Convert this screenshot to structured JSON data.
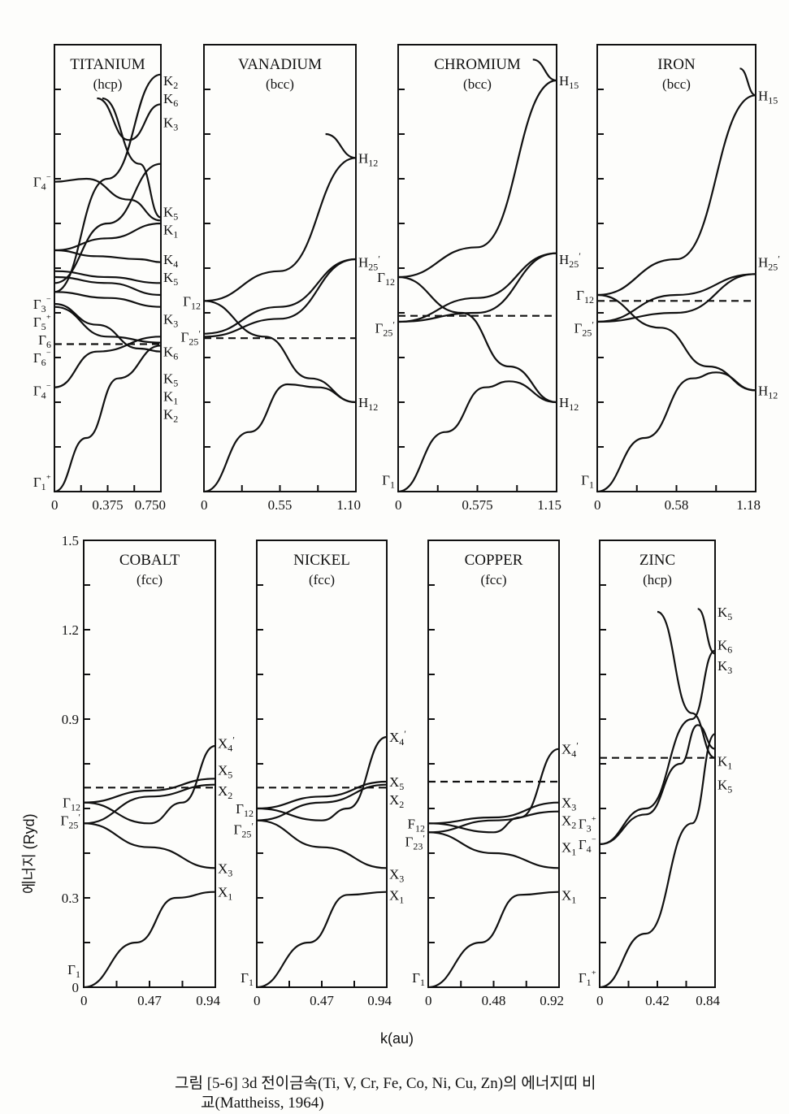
{
  "figure": {
    "x_axis_label": "k(au)",
    "y_axis_label": "에너지 (Ryd)",
    "caption_line1": "그림 [5-6]  3d 전이금속(Ti, V, Cr, Fe, Co, Ni, Cu, Zn)의 에너지띠 비",
    "caption_line2": "교(Mattheiss, 1964)",
    "y_ticks": [
      "1.5",
      "1.2",
      "0.9",
      "0.3",
      "0"
    ]
  },
  "chart_data": [
    {
      "type": "line",
      "title": "TITANIUM",
      "subtitle": "(hcp)",
      "x_ticks": [
        "0",
        "0.375",
        "0.750"
      ],
      "xlim": [
        0,
        0.75
      ],
      "ylim": [
        0,
        1.5
      ],
      "left_labels": [
        "Γ4⁻",
        "Γ3⁻",
        "Γ6",
        "Γ5⁺",
        "Γ6⁻",
        "Γ4⁻",
        "Γ1⁺"
      ],
      "right_labels": [
        "K2",
        "K6",
        "K3",
        "K5",
        "K1",
        "K4",
        "K5",
        "K3",
        "K6",
        "K5",
        "K1",
        "K2"
      ],
      "fermi_level": 0.495
    },
    {
      "type": "line",
      "title": "VANADIUM",
      "subtitle": "(bcc)",
      "x_ticks": [
        "0",
        "0.55",
        "1.10"
      ],
      "xlim": [
        0,
        1.1
      ],
      "ylim": [
        0,
        1.5
      ],
      "left_labels": [
        "Γ12",
        "Γ25′"
      ],
      "right_labels": [
        "H12",
        "H25′",
        "H12"
      ],
      "fermi_level": 0.515
    },
    {
      "type": "line",
      "title": "CHROMIUM",
      "subtitle": "(bcc)",
      "x_ticks": [
        "0",
        "0.575",
        "1.15"
      ],
      "xlim": [
        0,
        1.15
      ],
      "ylim": [
        0,
        1.5
      ],
      "left_labels": [
        "Γ12",
        "Γ25′",
        "Γ1"
      ],
      "right_labels": [
        "H15",
        "H25′",
        "H12"
      ],
      "fermi_level": 0.59
    },
    {
      "type": "line",
      "title": "IRON",
      "subtitle": "(bcc)",
      "x_ticks": [
        "0",
        "0.58",
        "1.18"
      ],
      "xlim": [
        0,
        1.18
      ],
      "ylim": [
        0,
        1.5
      ],
      "left_labels": [
        "Γ12",
        "Γ25′",
        "Γ1"
      ],
      "right_labels": [
        "H15",
        "H25′",
        "H12"
      ],
      "fermi_level": 0.64
    },
    {
      "type": "line",
      "title": "COBALT",
      "subtitle": "(fcc)",
      "x_ticks": [
        "0",
        "0.47",
        "0.94"
      ],
      "xlim": [
        0,
        0.94
      ],
      "ylim": [
        0,
        1.5
      ],
      "left_labels": [
        "Γ12",
        "Γ25′",
        "Γ1"
      ],
      "right_labels": [
        "X4′",
        "X5",
        "X2",
        "X3",
        "X1"
      ],
      "fermi_level": 0.67
    },
    {
      "type": "line",
      "title": "NICKEL",
      "subtitle": "(fcc)",
      "x_ticks": [
        "0",
        "0.47",
        "0.94"
      ],
      "xlim": [
        0,
        0.94
      ],
      "ylim": [
        0,
        1.5
      ],
      "left_labels": [
        "Γ12",
        "Γ25′",
        "Γ1"
      ],
      "right_labels": [
        "X4′",
        "X5",
        "X2",
        "X3",
        "X1"
      ],
      "fermi_level": 0.67
    },
    {
      "type": "line",
      "title": "COPPER",
      "subtitle": "(fcc)",
      "x_ticks": [
        "0",
        "0.48",
        "0.92"
      ],
      "xlim": [
        0,
        0.92
      ],
      "ylim": [
        0,
        1.5
      ],
      "left_labels": [
        "F12",
        "Γ23′",
        "Γ1"
      ],
      "right_labels": [
        "X4′",
        "X3",
        "X2",
        "X1",
        "X1"
      ],
      "fermi_level": 0.69
    },
    {
      "type": "line",
      "title": "ZINC",
      "subtitle": "(hcp)",
      "x_ticks": [
        "0",
        "0.42",
        "0.84"
      ],
      "xlim": [
        0,
        0.84
      ],
      "ylim": [
        0,
        1.5
      ],
      "left_labels": [
        "Γ3⁺",
        "Γ4⁻",
        "Γ1⁺"
      ],
      "right_labels": [
        "K5",
        "K6",
        "K3",
        "K1",
        "K5"
      ],
      "fermi_level": 0.77
    }
  ]
}
